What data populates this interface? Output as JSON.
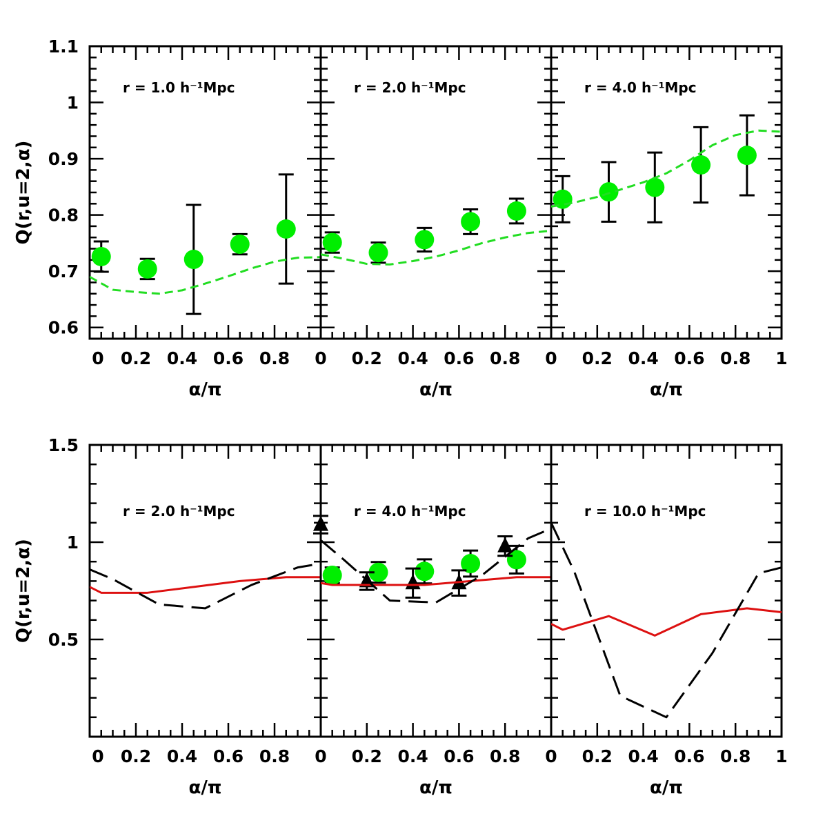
{
  "chart_data": [
    {
      "type": "scatter",
      "row": "top",
      "ylabel": "Q(r,u=2,α)",
      "xlabel": "α/π",
      "ylim": [
        0.58,
        1.1
      ],
      "yticks_labeled": [
        "0.6",
        "0.7",
        "0.8",
        "0.9",
        "1",
        "1.1"
      ],
      "xticks_labeled": [
        [
          "0",
          "0.2",
          "0.4",
          "0.6",
          "0.8"
        ],
        [
          "0",
          "0.2",
          "0.4",
          "0.6",
          "0.8"
        ],
        [
          "0",
          "0.2",
          "0.4",
          "0.6",
          "0.8",
          "1"
        ]
      ],
      "panels": [
        {
          "label": "r = 1.0 h⁻¹Mpc",
          "series": [
            {
              "style": "points",
              "color": "#00ee00",
              "x": [
                0.05,
                0.25,
                0.45,
                0.65,
                0.85
              ],
              "y": [
                0.726,
                0.704,
                0.721,
                0.748,
                0.775
              ],
              "yerr": [
                0.027,
                0.018,
                0.097,
                0.018,
                0.097
              ]
            },
            {
              "style": "dashed",
              "color": "#22dd22",
              "x": [
                0.0,
                0.1,
                0.2,
                0.3,
                0.4,
                0.5,
                0.6,
                0.7,
                0.8,
                0.9,
                1.0
              ],
              "y": [
                0.69,
                0.667,
                0.663,
                0.66,
                0.666,
                0.678,
                0.691,
                0.705,
                0.717,
                0.724,
                0.725
              ]
            }
          ]
        },
        {
          "label": "r = 2.0 h⁻¹Mpc",
          "series": [
            {
              "style": "points",
              "color": "#00ee00",
              "x": [
                0.05,
                0.25,
                0.45,
                0.65,
                0.85
              ],
              "y": [
                0.751,
                0.733,
                0.756,
                0.788,
                0.807
              ],
              "yerr": [
                0.018,
                0.018,
                0.021,
                0.022,
                0.022
              ]
            },
            {
              "style": "dashed",
              "color": "#22dd22",
              "x": [
                0.0,
                0.1,
                0.2,
                0.3,
                0.4,
                0.5,
                0.6,
                0.7,
                0.8,
                0.9,
                1.0
              ],
              "y": [
                0.73,
                0.722,
                0.713,
                0.712,
                0.718,
                0.726,
                0.737,
                0.75,
                0.76,
                0.768,
                0.772
              ]
            }
          ]
        },
        {
          "label": "r = 4.0 h⁻¹Mpc",
          "series": [
            {
              "style": "points",
              "color": "#00ee00",
              "x": [
                0.05,
                0.25,
                0.45,
                0.65,
                0.85
              ],
              "y": [
                0.828,
                0.841,
                0.849,
                0.889,
                0.906
              ],
              "yerr": [
                0.041,
                0.053,
                0.062,
                0.067,
                0.071
              ]
            },
            {
              "style": "dashed",
              "color": "#22dd22",
              "x": [
                0.0,
                0.1,
                0.2,
                0.3,
                0.4,
                0.5,
                0.6,
                0.7,
                0.8,
                0.9,
                1.0
              ],
              "y": [
                0.815,
                0.822,
                0.832,
                0.845,
                0.858,
                0.874,
                0.897,
                0.924,
                0.942,
                0.95,
                0.948
              ]
            }
          ]
        }
      ]
    },
    {
      "type": "line",
      "row": "bottom",
      "ylabel": "Q(r,u=2,α)",
      "xlabel": "α/π",
      "ylim": [
        0.0,
        1.5
      ],
      "yticks_labeled": [
        "0.5",
        "1",
        "1.5"
      ],
      "xticks_labeled": [
        [
          "0",
          "0.2",
          "0.4",
          "0.6",
          "0.8"
        ],
        [
          "0",
          "0.2",
          "0.4",
          "0.6",
          "0.8"
        ],
        [
          "0",
          "0.2",
          "0.4",
          "0.6",
          "0.8",
          "1"
        ]
      ],
      "panels": [
        {
          "label": "r = 2.0 h⁻¹Mpc",
          "series": [
            {
              "style": "solid",
              "color": "#dd1111",
              "x": [
                0.0,
                0.05,
                0.25,
                0.45,
                0.65,
                0.85,
                1.0
              ],
              "y": [
                0.77,
                0.74,
                0.74,
                0.77,
                0.8,
                0.82,
                0.82
              ]
            },
            {
              "style": "longdash",
              "color": "#000000",
              "x": [
                0.0,
                0.1,
                0.3,
                0.5,
                0.7,
                0.9,
                1.0
              ],
              "y": [
                0.86,
                0.81,
                0.68,
                0.66,
                0.78,
                0.87,
                0.89
              ]
            }
          ]
        },
        {
          "label": "r = 4.0 h⁻¹Mpc",
          "series": [
            {
              "style": "points",
              "color": "#00ee00",
              "x": [
                0.05,
                0.25,
                0.45,
                0.65,
                0.85
              ],
              "y": [
                0.83,
                0.845,
                0.85,
                0.89,
                0.91
              ],
              "yerr": [
                0.04,
                0.053,
                0.062,
                0.067,
                0.071
              ]
            },
            {
              "style": "triangles",
              "color": "#000000",
              "x": [
                0.0,
                0.2,
                0.4,
                0.6,
                0.8
              ],
              "y": [
                1.09,
                0.8,
                0.79,
                0.79,
                0.98
              ],
              "yerr": [
                0.045,
                0.045,
                0.075,
                0.065,
                0.05
              ]
            },
            {
              "style": "solid",
              "color": "#dd1111",
              "x": [
                0.0,
                0.05,
                0.25,
                0.45,
                0.65,
                0.85,
                1.0
              ],
              "y": [
                0.79,
                0.78,
                0.78,
                0.78,
                0.8,
                0.82,
                0.82
              ]
            },
            {
              "style": "longdash",
              "color": "#000000",
              "x": [
                0.0,
                0.1,
                0.3,
                0.5,
                0.7,
                0.9,
                1.0
              ],
              "y": [
                1.01,
                0.91,
                0.7,
                0.69,
                0.83,
                1.02,
                1.07
              ]
            }
          ]
        },
        {
          "label": "r = 10.0 h⁻¹Mpc",
          "series": [
            {
              "style": "solid",
              "color": "#dd1111",
              "x": [
                0.0,
                0.05,
                0.25,
                0.45,
                0.65,
                0.85,
                1.0
              ],
              "y": [
                0.58,
                0.55,
                0.62,
                0.52,
                0.63,
                0.66,
                0.64
              ]
            },
            {
              "style": "longdash",
              "color": "#000000",
              "x": [
                0.0,
                0.1,
                0.3,
                0.5,
                0.7,
                0.9,
                1.0
              ],
              "y": [
                1.1,
                0.85,
                0.21,
                0.1,
                0.43,
                0.84,
                0.87
              ]
            }
          ]
        }
      ]
    }
  ]
}
